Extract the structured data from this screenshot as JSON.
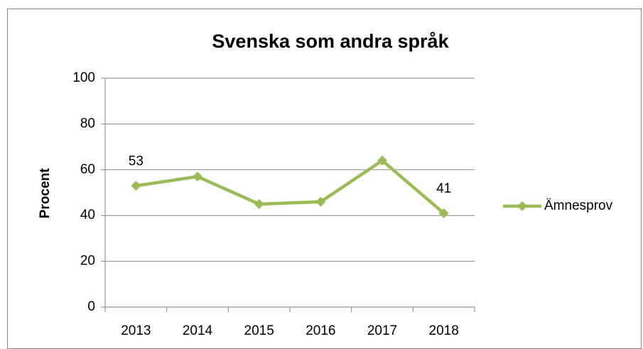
{
  "chart_data": {
    "type": "line",
    "title": "Svenska som andra språk",
    "ylabel": "Procent",
    "categories": [
      "2013",
      "2014",
      "2015",
      "2016",
      "2017",
      "2018"
    ],
    "series": [
      {
        "name": "Ämnesprov",
        "color": "#9bbb59",
        "values": [
          53,
          57,
          45,
          46,
          64,
          41
        ],
        "value_labels": [
          "53",
          null,
          null,
          null,
          null,
          "41"
        ]
      }
    ],
    "ylim": [
      0,
      100
    ],
    "yticks": [
      0,
      20,
      40,
      60,
      80,
      100
    ],
    "grid": true,
    "legend": "right"
  }
}
